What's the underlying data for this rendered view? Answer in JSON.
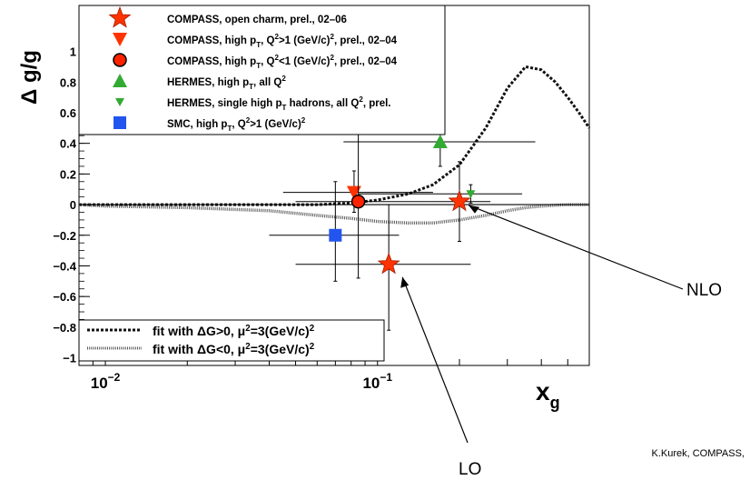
{
  "chart_data": {
    "type": "scatter",
    "ylabel": "Δ g/g",
    "xlabel_main": "x",
    "xlabel_sub": "g",
    "x_scale": "log",
    "xlim": [
      0.008,
      0.6
    ],
    "ylim": [
      -1.05,
      1.3
    ],
    "x_ticks": [
      {
        "value": 0.01,
        "base": "10",
        "exp": "−2"
      },
      {
        "value": 0.1,
        "base": "10",
        "exp": "−1"
      }
    ],
    "y_ticks": [
      {
        "value": 1,
        "label": "1"
      },
      {
        "value": 0.8,
        "label": "0.8"
      },
      {
        "value": 0.6,
        "label": "0.6"
      },
      {
        "value": 0.4,
        "label": "0.4"
      },
      {
        "value": 0.2,
        "label": "0.2"
      },
      {
        "value": 0,
        "label": "0"
      },
      {
        "value": -0.2,
        "label": "−0.2"
      },
      {
        "value": -0.4,
        "label": "−0.4"
      },
      {
        "value": -0.6,
        "label": "−0.6"
      },
      {
        "value": -0.8,
        "label": "−0.8"
      },
      {
        "value": -1,
        "label": "−1"
      }
    ],
    "series": [
      {
        "legend": "COMPASS, open charm, prel., 02–06",
        "marker": "star",
        "color": "#ff3300",
        "points": [
          {
            "x": 0.11,
            "y": -0.39,
            "xlo": 0.05,
            "xhi": 0.22,
            "ylo": -0.82,
            "yhi": 0.0
          },
          {
            "x": 0.2,
            "y": 0.02,
            "xlo": 0.15,
            "xhi": 0.26,
            "ylo": -0.24,
            "yhi": 0.28
          }
        ]
      },
      {
        "legend": "COMPASS, high pT, Q²>1 (GeV/c)², prel., 02–04",
        "marker": "triangle-down",
        "color": "#ff3300",
        "points": [
          {
            "x": 0.082,
            "y": 0.08,
            "xlo": 0.045,
            "xhi": 0.16,
            "ylo": -0.05,
            "yhi": 0.22
          }
        ]
      },
      {
        "legend": "COMPASS, high pT, Q²<1 (GeV/c)², prel., 02–04",
        "marker": "circle",
        "color": "#ff2200",
        "points": [
          {
            "x": 0.085,
            "y": 0.02,
            "xlo": 0.05,
            "xhi": 0.15,
            "ylo": -0.48,
            "yhi": 0.5
          }
        ]
      },
      {
        "legend": "HERMES, high pT, all Q²",
        "marker": "triangle-up",
        "color": "#33aa33",
        "points": [
          {
            "x": 0.17,
            "y": 0.41,
            "xlo": 0.075,
            "xhi": 0.38,
            "ylo": 0.25,
            "yhi": 0.55
          }
        ]
      },
      {
        "legend": "HERMES, single high pT hadrons, all Q², prel.",
        "marker": "triangle-down-small",
        "color": "#33aa33",
        "points": [
          {
            "x": 0.22,
            "y": 0.07,
            "xlo": 0.085,
            "xhi": 0.34,
            "ylo": 0.01,
            "yhi": 0.13
          }
        ]
      },
      {
        "legend": "SMC, high pT, Q²>1 (GeV/c)²",
        "marker": "square",
        "color": "#2255ee",
        "points": [
          {
            "x": 0.07,
            "y": -0.2,
            "xlo": 0.04,
            "xhi": 0.12,
            "ylo": -0.5,
            "yhi": 0.15
          }
        ]
      }
    ],
    "fits": [
      {
        "legend": "fit with  ΔG>0, μ²=3(GeV/c)²",
        "style": "dashed",
        "x": [
          0.008,
          0.01,
          0.02,
          0.04,
          0.06,
          0.08,
          0.1,
          0.13,
          0.16,
          0.2,
          0.25,
          0.3,
          0.35,
          0.4,
          0.45,
          0.5,
          0.55,
          0.6
        ],
        "y": [
          0.0,
          0.0,
          0.0,
          0.0,
          0.0,
          0.01,
          0.03,
          0.07,
          0.13,
          0.26,
          0.5,
          0.76,
          0.9,
          0.88,
          0.8,
          0.7,
          0.6,
          0.5
        ]
      },
      {
        "legend": "fit with  ΔG<0, μ²=3(GeV/c)²",
        "style": "dotted",
        "x": [
          0.008,
          0.01,
          0.02,
          0.04,
          0.06,
          0.08,
          0.1,
          0.13,
          0.16,
          0.2,
          0.25,
          0.3,
          0.35,
          0.4,
          0.5,
          0.6
        ],
        "y": [
          0.0,
          -0.01,
          -0.02,
          -0.04,
          -0.07,
          -0.09,
          -0.11,
          -0.12,
          -0.12,
          -0.1,
          -0.07,
          -0.04,
          -0.02,
          -0.01,
          0.0,
          0.0
        ]
      }
    ],
    "annotations": [
      {
        "text": "NLO",
        "x": 0.2,
        "y": 0.02
      },
      {
        "text": "LO",
        "x": 0.11,
        "y": -0.39
      }
    ],
    "grid": false,
    "legend_placement": "top-left, points legend above the frame, fit legend at bottom-left"
  },
  "credit": "K.Kurek, COMPASS,",
  "colors": {
    "credit": "#33cc33",
    "axis": "#000000"
  }
}
